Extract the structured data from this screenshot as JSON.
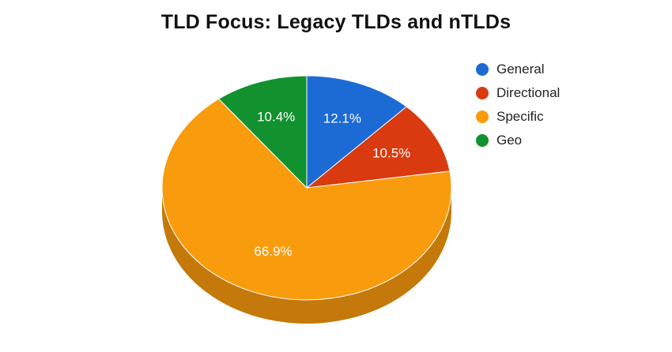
{
  "chart_data": {
    "type": "pie",
    "title": "TLD Focus: Legacy TLDs and nTLDs",
    "slices": [
      {
        "name": "General",
        "value": 12.1,
        "label": "12.1%",
        "color": "#1c6bd4",
        "side_color": "#154f9e"
      },
      {
        "name": "Directional",
        "value": 10.5,
        "label": "10.5%",
        "color": "#d93a10",
        "side_color": "#a32b0b"
      },
      {
        "name": "Specific",
        "value": 66.9,
        "label": "66.9%",
        "color": "#f89c0e",
        "side_color": "#c4790a"
      },
      {
        "name": "Geo",
        "value": 10.4,
        "label": "10.4%",
        "color": "#12912f",
        "side_color": "#0d6b22"
      }
    ],
    "legend_position": "right",
    "style": "3d"
  }
}
